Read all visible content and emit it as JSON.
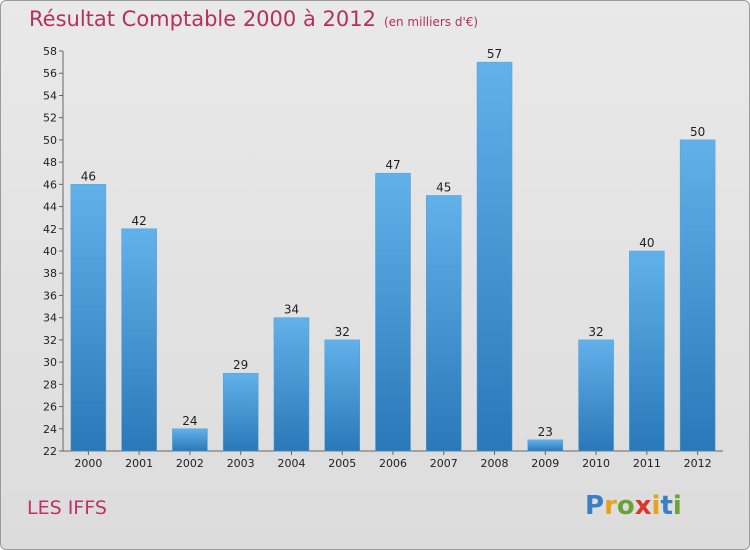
{
  "chart_data": {
    "type": "bar",
    "title": "Résultat Comptable 2000 à 2012",
    "subtitle": "(en milliers d'€)",
    "categories": [
      "2000",
      "2001",
      "2002",
      "2003",
      "2004",
      "2005",
      "2006",
      "2007",
      "2008",
      "2009",
      "2010",
      "2011",
      "2012"
    ],
    "values": [
      46,
      42,
      24,
      29,
      34,
      32,
      47,
      45,
      57,
      23,
      32,
      40,
      50
    ],
    "ylim": [
      22,
      58
    ],
    "yticks": [
      22,
      24,
      26,
      28,
      30,
      32,
      34,
      36,
      38,
      40,
      42,
      44,
      46,
      48,
      50,
      52,
      54,
      56,
      58
    ],
    "xlabel": "",
    "ylabel": "",
    "grid": false
  },
  "commune": "LES IFFS",
  "brand": {
    "letters": [
      "P",
      "r",
      "o",
      "x",
      "i",
      "t",
      "i"
    ],
    "colors": [
      "#3a7fc4",
      "#e8a21a",
      "#6aa335",
      "#d8372d",
      "#e8a21a",
      "#3a7fc4",
      "#6aa335"
    ]
  },
  "colors": {
    "bar_light": "#62b1ea",
    "bar_dark": "#2a78b8",
    "title": "#b5305d"
  }
}
